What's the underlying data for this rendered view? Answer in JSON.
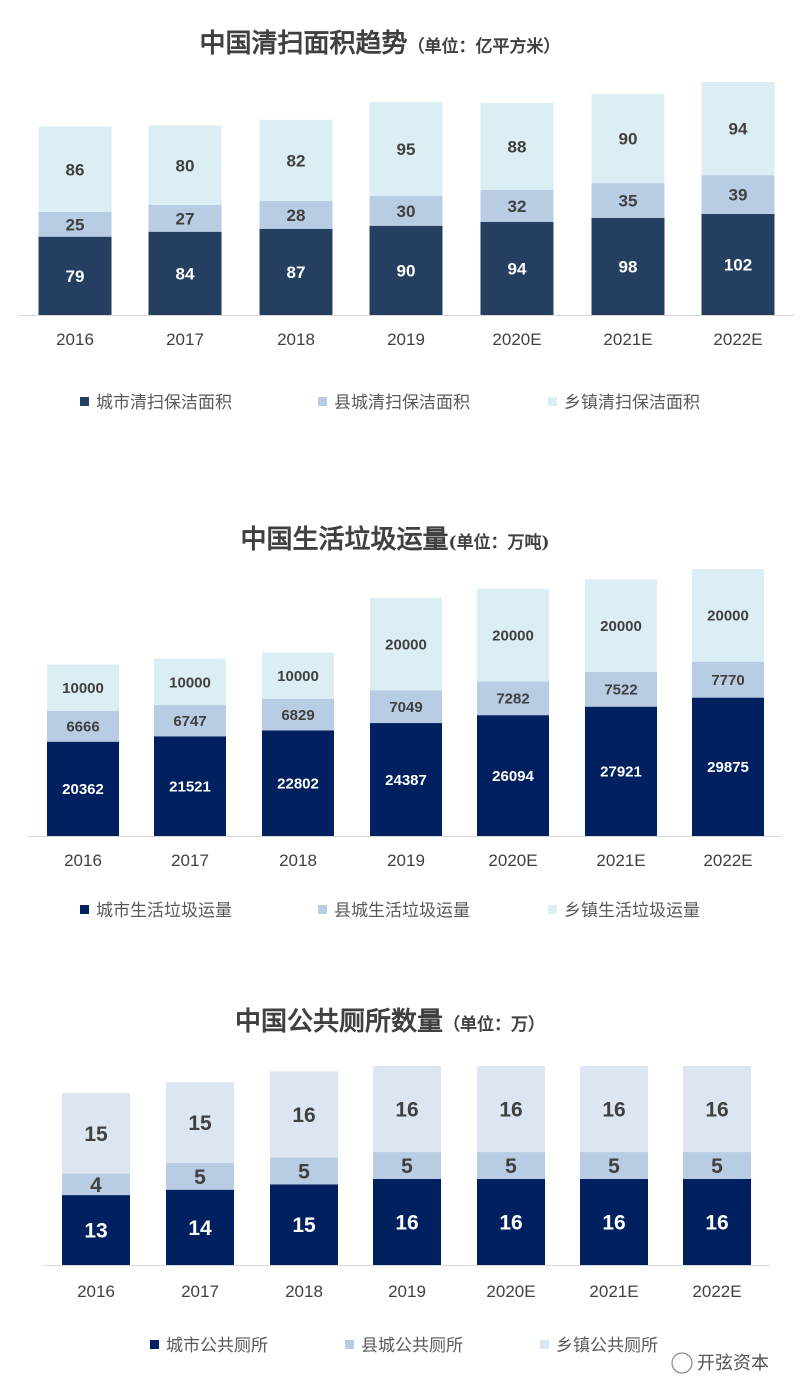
{
  "chart_data": [
    {
      "type": "bar",
      "stacked": true,
      "title": "中国清扫面积趋势",
      "unit": "（单位：亿平方米）",
      "categories": [
        "2016",
        "2017",
        "2018",
        "2019",
        "2020E",
        "2021E",
        "2022E"
      ],
      "series": [
        {
          "name": "城市清扫保洁面积",
          "values": [
            79,
            84,
            87,
            90,
            94,
            98,
            102
          ],
          "color": "#243F60"
        },
        {
          "name": "县城清扫保洁面积",
          "values": [
            25,
            27,
            28,
            30,
            32,
            35,
            39
          ],
          "color": "#B8CCE4"
        },
        {
          "name": "乡镇清扫保洁面积",
          "values": [
            86,
            80,
            82,
            95,
            88,
            90,
            94
          ],
          "color": "#DBEEF4"
        }
      ],
      "ylim": [
        0,
        240
      ],
      "grid": false,
      "legend": "bottom"
    },
    {
      "type": "bar",
      "stacked": true,
      "title": "中国生活垃圾运量",
      "unit": "(单位：万吨)",
      "categories": [
        "2016",
        "2017",
        "2018",
        "2019",
        "2020E",
        "2021E",
        "2022E"
      ],
      "series": [
        {
          "name": "城市生活垃圾运量",
          "values": [
            20362,
            21521,
            22802,
            24387,
            26094,
            27921,
            29875
          ],
          "color": "#002060"
        },
        {
          "name": "县城生活垃圾运量",
          "values": [
            6666,
            6747,
            6829,
            7049,
            7282,
            7522,
            7770
          ],
          "color": "#B8CCE4"
        },
        {
          "name": "乡镇生活垃圾运量",
          "values": [
            10000,
            10000,
            10000,
            20000,
            20000,
            20000,
            20000
          ],
          "color": "#DBEEF4"
        }
      ],
      "ylim": [
        0,
        58000
      ],
      "grid": false,
      "legend": "bottom"
    },
    {
      "type": "bar",
      "stacked": true,
      "title": "中国公共厕所数量",
      "unit": "（单位：万）",
      "categories": [
        "2016",
        "2017",
        "2018",
        "2019",
        "2020E",
        "2021E",
        "2022E"
      ],
      "series": [
        {
          "name": "城市公共厕所",
          "values": [
            13,
            14,
            15,
            16,
            16,
            16,
            16
          ],
          "color": "#002060"
        },
        {
          "name": "县城公共厕所",
          "values": [
            4,
            5,
            5,
            5,
            5,
            5,
            5
          ],
          "color": "#B8CCE4"
        },
        {
          "name": "乡镇公共厕所",
          "values": [
            15,
            15,
            16,
            16,
            16,
            16,
            16
          ],
          "color": "#DCE6F2"
        }
      ],
      "ylim": [
        0,
        37
      ],
      "grid": false,
      "legend": "bottom"
    }
  ],
  "watermark": "开弦资本"
}
